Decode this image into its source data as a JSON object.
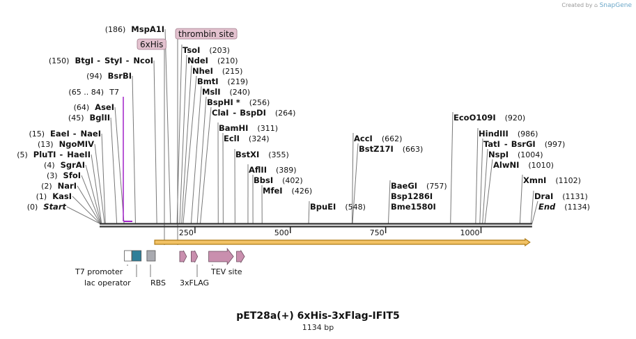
{
  "watermark": {
    "prefix": "Created by",
    "brand": "SnapGene"
  },
  "title": "pET28a(+) 6xHis-3xFlag-IFIT5",
  "subtitle": "1134 bp",
  "sequence_length": 1134,
  "ruler_ticks": [
    250,
    500,
    750,
    1000
  ],
  "enzymes": [
    {
      "id": "start",
      "name": "Start",
      "pos": "(0)",
      "site": 0,
      "italic": true
    },
    {
      "id": "kasi",
      "name": "KasI",
      "pos": "(1)",
      "site": 1
    },
    {
      "id": "nari",
      "name": "NarI",
      "pos": "(2)",
      "site": 2
    },
    {
      "id": "sfoi",
      "name": "SfoI",
      "pos": "(3)",
      "site": 3
    },
    {
      "id": "sgrai",
      "name": "SgrAI",
      "pos": "(4)",
      "site": 4
    },
    {
      "id": "pluti",
      "name": "PluTI",
      "name2": "HaeII",
      "pos": "(5)",
      "site": 5
    },
    {
      "id": "ngomiv",
      "name": "NgoMIV",
      "pos": "(13)",
      "site": 13
    },
    {
      "id": "eaei",
      "name": "EaeI",
      "name2": "NaeI",
      "pos": "(15)",
      "site": 15
    },
    {
      "id": "bglii",
      "name": "BglII",
      "pos": "(45)",
      "site": 45
    },
    {
      "id": "asei",
      "name": "AseI",
      "pos": "(64)",
      "site": 64
    },
    {
      "id": "bsrbi",
      "name": "BsrBI",
      "pos": "(94)",
      "site": 94
    },
    {
      "id": "btgi",
      "name": "BtgI",
      "name2": "StyI",
      "name3": "NcoI",
      "pos": "(150)",
      "site": 150
    },
    {
      "id": "mspa1i",
      "name": "MspA1I",
      "pos": "(186)",
      "site": 186
    },
    {
      "id": "tsoi",
      "name": "TsoI",
      "pos": "(203)",
      "site": 203
    },
    {
      "id": "ndei",
      "name": "NdeI",
      "pos": "(210)",
      "site": 210
    },
    {
      "id": "nhei",
      "name": "NheI",
      "pos": "(215)",
      "site": 215
    },
    {
      "id": "bmti",
      "name": "BmtI",
      "pos": "(219)",
      "site": 219
    },
    {
      "id": "msli",
      "name": "MslI",
      "pos": "(240)",
      "site": 240
    },
    {
      "id": "bsphi",
      "name": "BspHI *",
      "pos": "(256)",
      "site": 256
    },
    {
      "id": "clai",
      "name": "ClaI",
      "name2": "BspDI",
      "pos": "(264)",
      "site": 264
    },
    {
      "id": "bamhi",
      "name": "BamHI",
      "pos": "(311)",
      "site": 311
    },
    {
      "id": "ecli",
      "name": "EclI",
      "pos": "(324)",
      "site": 324
    },
    {
      "id": "bstxi",
      "name": "BstXI",
      "pos": "(355)",
      "site": 355
    },
    {
      "id": "aflii",
      "name": "AflII",
      "pos": "(389)",
      "site": 389
    },
    {
      "id": "bbsi",
      "name": "BbsI",
      "pos": "(402)",
      "site": 402
    },
    {
      "id": "mfei",
      "name": "MfeI",
      "pos": "(426)",
      "site": 426
    },
    {
      "id": "bpuei",
      "name": "BpuEI",
      "pos": "(548)",
      "site": 548
    },
    {
      "id": "acci",
      "name": "AccI",
      "pos": "(662)",
      "site": 662
    },
    {
      "id": "bstz17i",
      "name": "BstZ17I",
      "pos": "(663)",
      "site": 663
    },
    {
      "id": "baegi",
      "name": "BaeGI",
      "pos": "(757)",
      "site": 757
    },
    {
      "id": "bsp1286i",
      "name": "Bsp1286I",
      "site": 757
    },
    {
      "id": "bme1580i",
      "name": "Bme1580I",
      "site": 757
    },
    {
      "id": "ecoo109i",
      "name": "EcoO109I",
      "pos": "(920)",
      "site": 920
    },
    {
      "id": "hindiii",
      "name": "HindIII",
      "pos": "(986)",
      "site": 986
    },
    {
      "id": "tati",
      "name": "TatI",
      "name2": "BsrGI",
      "pos": "(997)",
      "site": 997
    },
    {
      "id": "nspi",
      "name": "NspI",
      "pos": "(1004)",
      "site": 1004
    },
    {
      "id": "alwni",
      "name": "AlwNI",
      "pos": "(1010)",
      "site": 1010
    },
    {
      "id": "xmni",
      "name": "XmnI",
      "pos": "(1102)",
      "site": 1102
    },
    {
      "id": "drai",
      "name": "DraI",
      "pos": "(1131)",
      "site": 1131
    },
    {
      "id": "end",
      "name": "End",
      "pos": "(1134)",
      "site": 1134,
      "italic": true
    }
  ],
  "primer": {
    "label": "T7",
    "range": "(65 .. 84)",
    "start": 65,
    "end": 84,
    "color": "#a020c8"
  },
  "feature_labels": [
    {
      "id": "6xhis",
      "text": "6xHis"
    },
    {
      "id": "thrombin",
      "text": "thrombin site"
    }
  ],
  "features": [
    {
      "id": "t7promoter",
      "label": "T7 promoter",
      "color": "#ffffff",
      "start": 65,
      "end": 84
    },
    {
      "id": "lacoperator",
      "label": "lac operator",
      "color": "#2f7f99",
      "start": 85,
      "end": 109
    },
    {
      "id": "rbs",
      "label": "RBS",
      "color": "#a9aab0",
      "start": 124,
      "end": 146
    },
    {
      "id": "6xhis-feat",
      "color": "#c98fae",
      "start": 210,
      "end": 228
    },
    {
      "id": "thrombin-feat",
      "color": "#c98fae",
      "start": 240,
      "end": 257
    },
    {
      "id": "3xflag",
      "label": "3xFLAG",
      "color": "#c98fae",
      "start": 286,
      "end": 351
    },
    {
      "id": "tev",
      "label": "TEV site",
      "color": "#c98fae",
      "start": 359,
      "end": 380
    }
  ],
  "orf": {
    "start": 148,
    "end": 1132,
    "fill": "#f2c265",
    "stroke": "#b07c16"
  },
  "colors": {
    "backbone": "#333333",
    "feature_label_bg": "#e3c2cf"
  }
}
